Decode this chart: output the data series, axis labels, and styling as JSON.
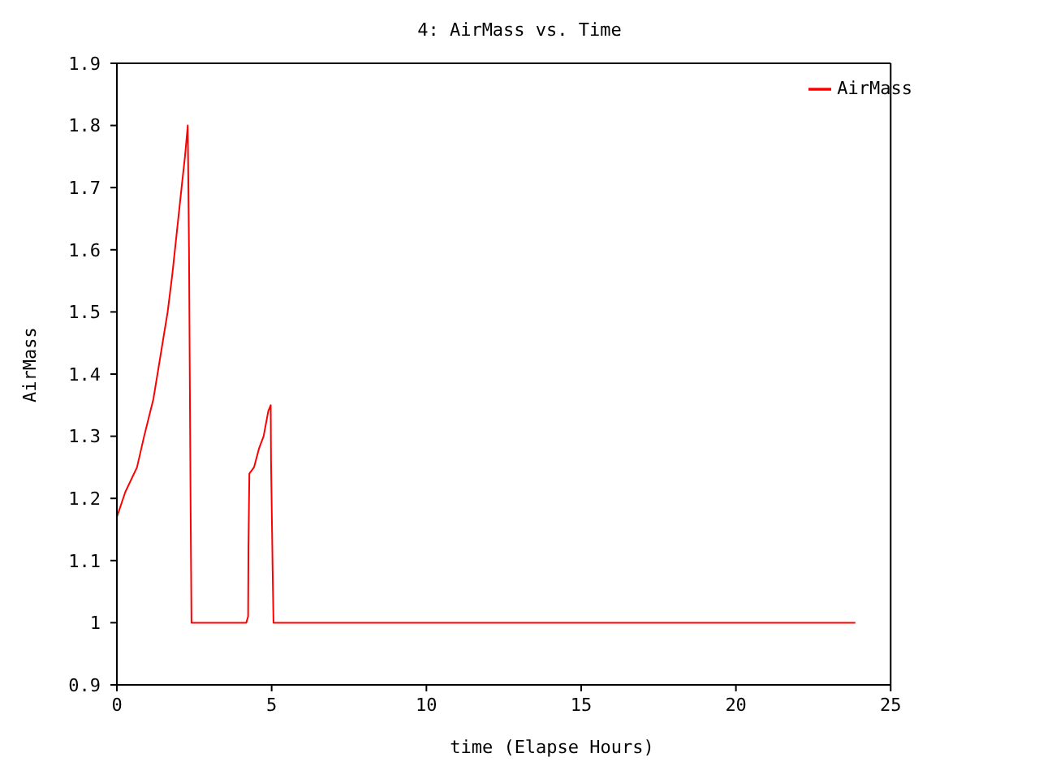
{
  "chart_data": {
    "type": "line",
    "title": "4: AirMass vs. Time",
    "xlabel": "time (Elapse Hours)",
    "ylabel": "AirMass",
    "x": [
      0,
      0.27,
      0.65,
      0.88,
      1.18,
      1.41,
      1.64,
      1.79,
      1.94,
      2.09,
      2.2,
      2.29,
      2.33,
      2.38,
      2.41,
      2.47,
      4.18,
      4.24,
      4.25,
      4.28,
      4.43,
      4.59,
      4.74,
      4.89,
      4.97,
      4.98,
      5.03,
      5.06,
      23.86
    ],
    "series": [
      {
        "name": "AirMass",
        "color": "#ff0000",
        "values": [
          1.17,
          1.21,
          1.25,
          1.3,
          1.36,
          1.43,
          1.5,
          1.56,
          1.63,
          1.7,
          1.75,
          1.8,
          1.6,
          1.2,
          1.0,
          1.0,
          1.0,
          1.01,
          1.12,
          1.24,
          1.25,
          1.28,
          1.3,
          1.34,
          1.35,
          1.26,
          1.09,
          1.0,
          1.0
        ]
      }
    ],
    "xlim": [
      0,
      25
    ],
    "xticks": [
      0,
      5,
      10,
      15,
      20,
      25
    ],
    "ylim": [
      0.9,
      1.9
    ],
    "yticks": [
      0.9,
      1,
      1.1,
      1.2,
      1.3,
      1.4,
      1.5,
      1.6,
      1.7,
      1.8,
      1.9
    ],
    "legend": "top right",
    "marker": "none",
    "line_style": "solid"
  }
}
